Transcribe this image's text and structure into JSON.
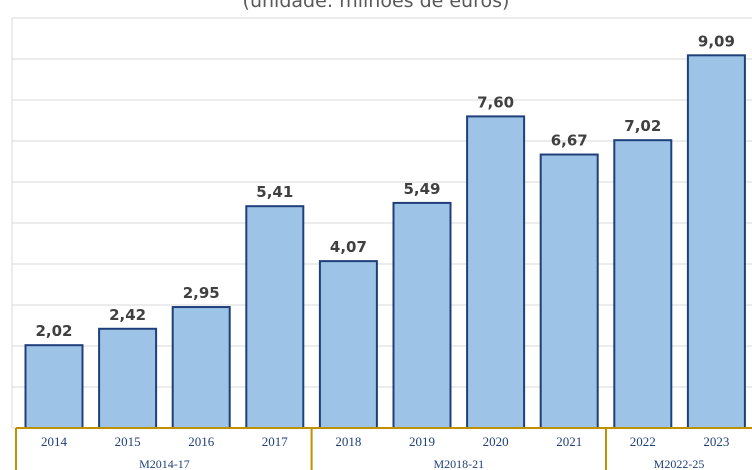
{
  "chart_data": {
    "type": "bar",
    "subtitle": "(unidade: milhões de euros)",
    "categories": [
      "2014",
      "2015",
      "2016",
      "2017",
      "2018",
      "2019",
      "2020",
      "2021",
      "2022",
      "2023"
    ],
    "values": [
      2.02,
      2.42,
      2.95,
      5.41,
      4.07,
      5.49,
      7.6,
      6.67,
      7.02,
      9.09
    ],
    "value_labels": [
      "2,02",
      "2,42",
      "2,95",
      "5,41",
      "4,07",
      "5,49",
      "7,60",
      "6,67",
      "7,02",
      "9,09"
    ],
    "groups": [
      {
        "label": "M2014-17",
        "categories": [
          "2014",
          "2015",
          "2016",
          "2017"
        ]
      },
      {
        "label": "M2018-21",
        "categories": [
          "2018",
          "2019",
          "2020",
          "2021"
        ]
      },
      {
        "label": "M2022-25",
        "categories": [
          "2022",
          "2023"
        ]
      }
    ],
    "ylim": [
      0,
      10
    ],
    "grid": true,
    "colors": {
      "bar_fill": "#9dc3e6",
      "bar_stroke": "#1f3f7a",
      "axis_box": "#bf9000",
      "grid": "#d9d9d9"
    }
  }
}
